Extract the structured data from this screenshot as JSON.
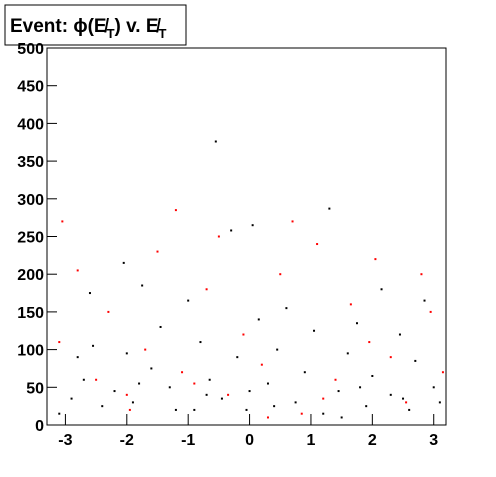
{
  "chart_data": {
    "type": "scatter",
    "title_parts": [
      "Event: ϕ(E̸",
      "T",
      ") v. E̸",
      "T"
    ],
    "xlim": [
      -3.3,
      3.2
    ],
    "ylim": [
      0,
      500
    ],
    "xticks": [
      -3,
      -2,
      -1,
      0,
      1,
      2,
      3
    ],
    "yticks": [
      0,
      50,
      100,
      150,
      200,
      250,
      300,
      350,
      400,
      450,
      500
    ],
    "series": [
      {
        "color": "#000000",
        "x": [
          -3.1,
          -2.9,
          -2.7,
          -2.55,
          -2.6,
          -2.4,
          -2.2,
          -2.05,
          -2.0,
          -1.9,
          -1.75,
          -1.6,
          -1.45,
          -1.3,
          -1.0,
          -0.9,
          -0.8,
          -0.65,
          -0.55,
          -0.45,
          -0.3,
          -0.2,
          -0.05,
          0.05,
          0.15,
          0.3,
          0.45,
          0.6,
          0.75,
          0.9,
          1.05,
          1.2,
          1.3,
          1.45,
          1.6,
          1.75,
          1.9,
          2.0,
          2.15,
          2.3,
          2.45,
          2.6,
          2.7,
          2.85,
          3.0,
          3.1,
          -2.8,
          -1.2,
          0.0,
          1.5,
          2.5,
          -0.7,
          0.4,
          1.8,
          -1.8
        ],
        "values": [
          15,
          35,
          60,
          105,
          175,
          25,
          45,
          215,
          95,
          30,
          185,
          75,
          130,
          50,
          165,
          20,
          110,
          60,
          376,
          35,
          258,
          90,
          20,
          265,
          140,
          55,
          100,
          155,
          30,
          70,
          125,
          15,
          287,
          45,
          95,
          135,
          25,
          65,
          180,
          40,
          120,
          20,
          85,
          165,
          50,
          30,
          90,
          20,
          45,
          10,
          35,
          40,
          25,
          50,
          55
        ]
      },
      {
        "color": "#ff0000",
        "x": [
          -3.1,
          -3.05,
          -2.8,
          -2.5,
          -2.3,
          -1.95,
          -1.7,
          -1.5,
          -1.2,
          -1.1,
          -0.7,
          -0.5,
          -0.35,
          -0.1,
          0.2,
          0.5,
          0.7,
          0.85,
          1.1,
          1.4,
          1.65,
          1.95,
          2.05,
          2.3,
          2.55,
          2.8,
          2.95,
          3.15,
          -2.0,
          0.3,
          1.2,
          -0.9
        ],
        "values": [
          110,
          270,
          205,
          60,
          150,
          20,
          100,
          230,
          285,
          70,
          180,
          250,
          40,
          120,
          80,
          200,
          270,
          15,
          240,
          60,
          160,
          110,
          220,
          90,
          30,
          200,
          150,
          70,
          40,
          10,
          35,
          55
        ]
      }
    ]
  }
}
